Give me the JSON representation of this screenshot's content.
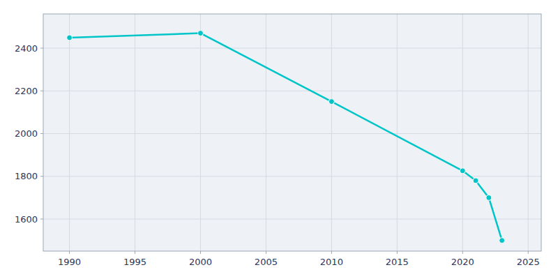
{
  "chart_data": {
    "type": "line",
    "x": [
      1990,
      2000,
      2010,
      2020,
      2021,
      2022,
      2023
    ],
    "values": [
      2449,
      2470,
      2150,
      1826,
      1780,
      1700,
      1500
    ],
    "color": "#00C5C8",
    "marker": "circle",
    "xlim": [
      1988,
      2026
    ],
    "ylim": [
      1450,
      2560
    ],
    "xticks": [
      1990,
      1995,
      2000,
      2005,
      2010,
      2015,
      2020,
      2025
    ],
    "yticks": [
      1600,
      1800,
      2000,
      2200,
      2400
    ],
    "grid": true
  }
}
